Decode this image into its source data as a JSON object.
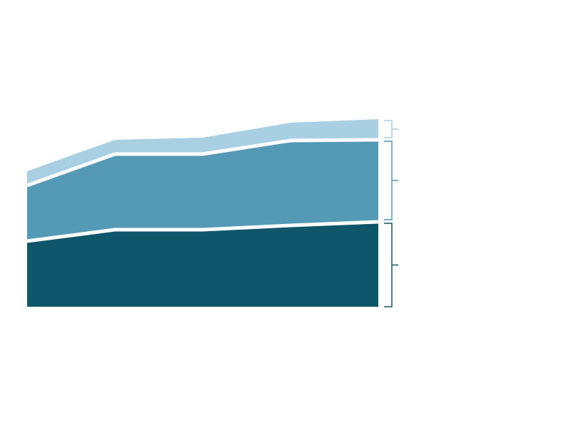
{
  "chart_data": {
    "type": "stacked_area",
    "categories": [
      null,
      null,
      null,
      null,
      null
    ],
    "series": [
      {
        "color": "#10566a",
        "values": [
          92,
          108,
          108,
          114,
          119
        ]
      },
      {
        "color": "#5499b5",
        "values": [
          78,
          106,
          106,
          119,
          115
        ]
      },
      {
        "color": "#a9cfe3",
        "values": [
          20,
          20,
          23,
          25,
          29
        ]
      }
    ],
    "ylim": [
      0,
      300
    ]
  }
}
